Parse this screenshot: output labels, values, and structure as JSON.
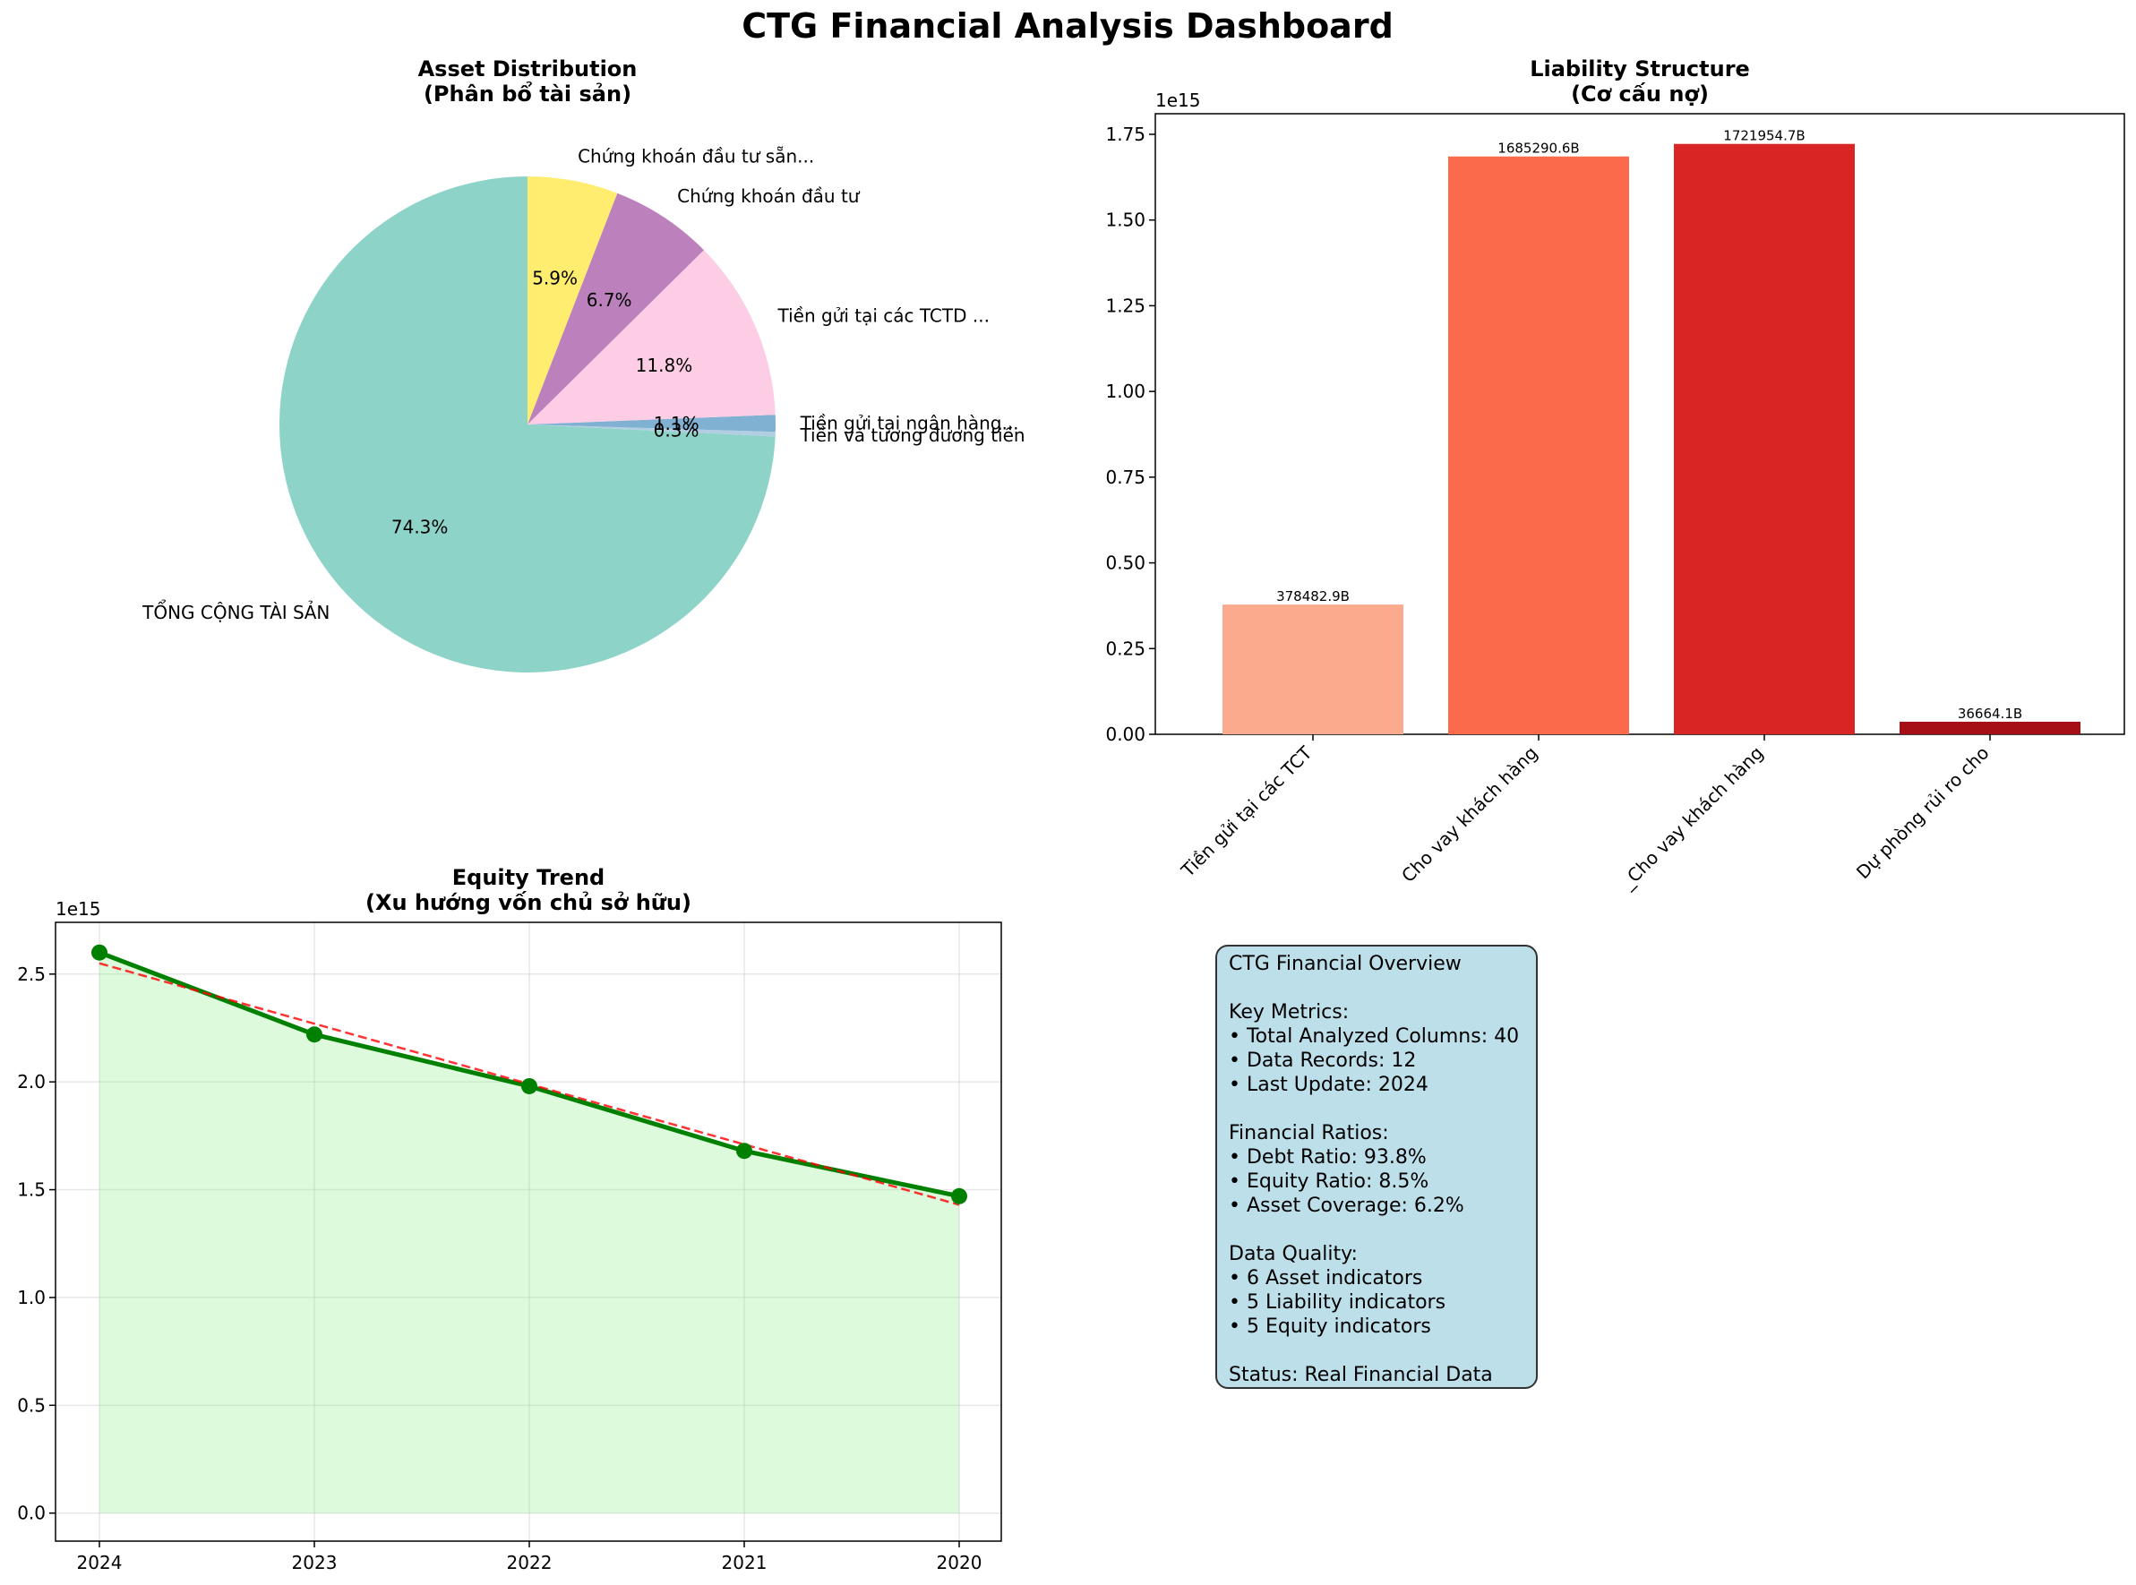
{
  "title": "CTG Financial Analysis Dashboard",
  "chart_data": [
    {
      "type": "pie",
      "title": "Asset Distribution\n(Phân bổ tài sản)",
      "slices": [
        {
          "label": "TỔNG CỘNG TÀI SẢN",
          "pct": 74.3,
          "pct_label": "74.3%",
          "color": "#8dd3c7"
        },
        {
          "label": "Tiền và tương đương tiền",
          "pct": 0.3,
          "pct_label": "0.3%",
          "color": "#b3cde3"
        },
        {
          "label": "Tiền gửi tại ngân hàng...",
          "pct": 1.1,
          "pct_label": "1.1%",
          "color": "#80b1d3"
        },
        {
          "label": "Tiền gửi tại các TCTD ...",
          "pct": 11.8,
          "pct_label": "11.8%",
          "color": "#fccde5"
        },
        {
          "label": "Chứng khoán đầu tư",
          "pct": 6.7,
          "pct_label": "6.7%",
          "color": "#bc80bd"
        },
        {
          "label": "Chứng khoán đầu tư sẵn...",
          "pct": 5.9,
          "pct_label": "5.9%",
          "color": "#ffed6f"
        }
      ]
    },
    {
      "type": "bar",
      "title": "Liability Structure\n(Cơ cấu nợ)",
      "offset_label": "1e15",
      "categories": [
        "Tiền gửi tại các TCT",
        "Cho vay khách hàng",
        "_Cho vay khách hàng",
        "Dự phòng rủi ro cho"
      ],
      "values": [
        0.3784829,
        1.6852906,
        1.7219547,
        0.0366641
      ],
      "value_labels": [
        "378482.9B",
        "1685290.6B",
        "1721954.7B",
        "36664.1B"
      ],
      "colors": [
        "#fcaa8e",
        "#fb6a4a",
        "#d92523",
        "#a50f15"
      ],
      "ylim": [
        0,
        1.81
      ],
      "yticks": [
        "0.00",
        "0.25",
        "0.50",
        "0.75",
        "1.00",
        "1.25",
        "1.50",
        "1.75"
      ]
    },
    {
      "type": "line",
      "title": "Equity Trend\n(Xu hướng vốn chủ sở hữu)",
      "offset_label": "1e15",
      "x": [
        "2024",
        "2023",
        "2022",
        "2021",
        "2020"
      ],
      "values": [
        2.6,
        2.22,
        1.98,
        1.68,
        1.47
      ],
      "trend": [
        2.55,
        2.27,
        1.99,
        1.71,
        1.43
      ],
      "ylim": [
        -0.13,
        2.74
      ],
      "yticks": [
        "0.0",
        "0.5",
        "1.0",
        "1.5",
        "2.0",
        "2.5"
      ],
      "grid": true,
      "colors": {
        "line": "#008000",
        "fill": "#90ee90",
        "trend": "#ff0000"
      }
    }
  ],
  "info_box": {
    "text": "CTG Financial Overview\n\nKey Metrics:\n• Total Analyzed Columns: 40\n• Data Records: 12\n• Last Update: 2024\n\nFinancial Ratios:\n• Debt Ratio: 93.8%\n• Equity Ratio: 8.5%\n• Asset Coverage: 6.2%\n\nData Quality:\n• 6 Asset indicators\n• 5 Liability indicators\n• 5 Equity indicators\n\nStatus: Real Financial Data",
    "background": "#add8e6"
  }
}
